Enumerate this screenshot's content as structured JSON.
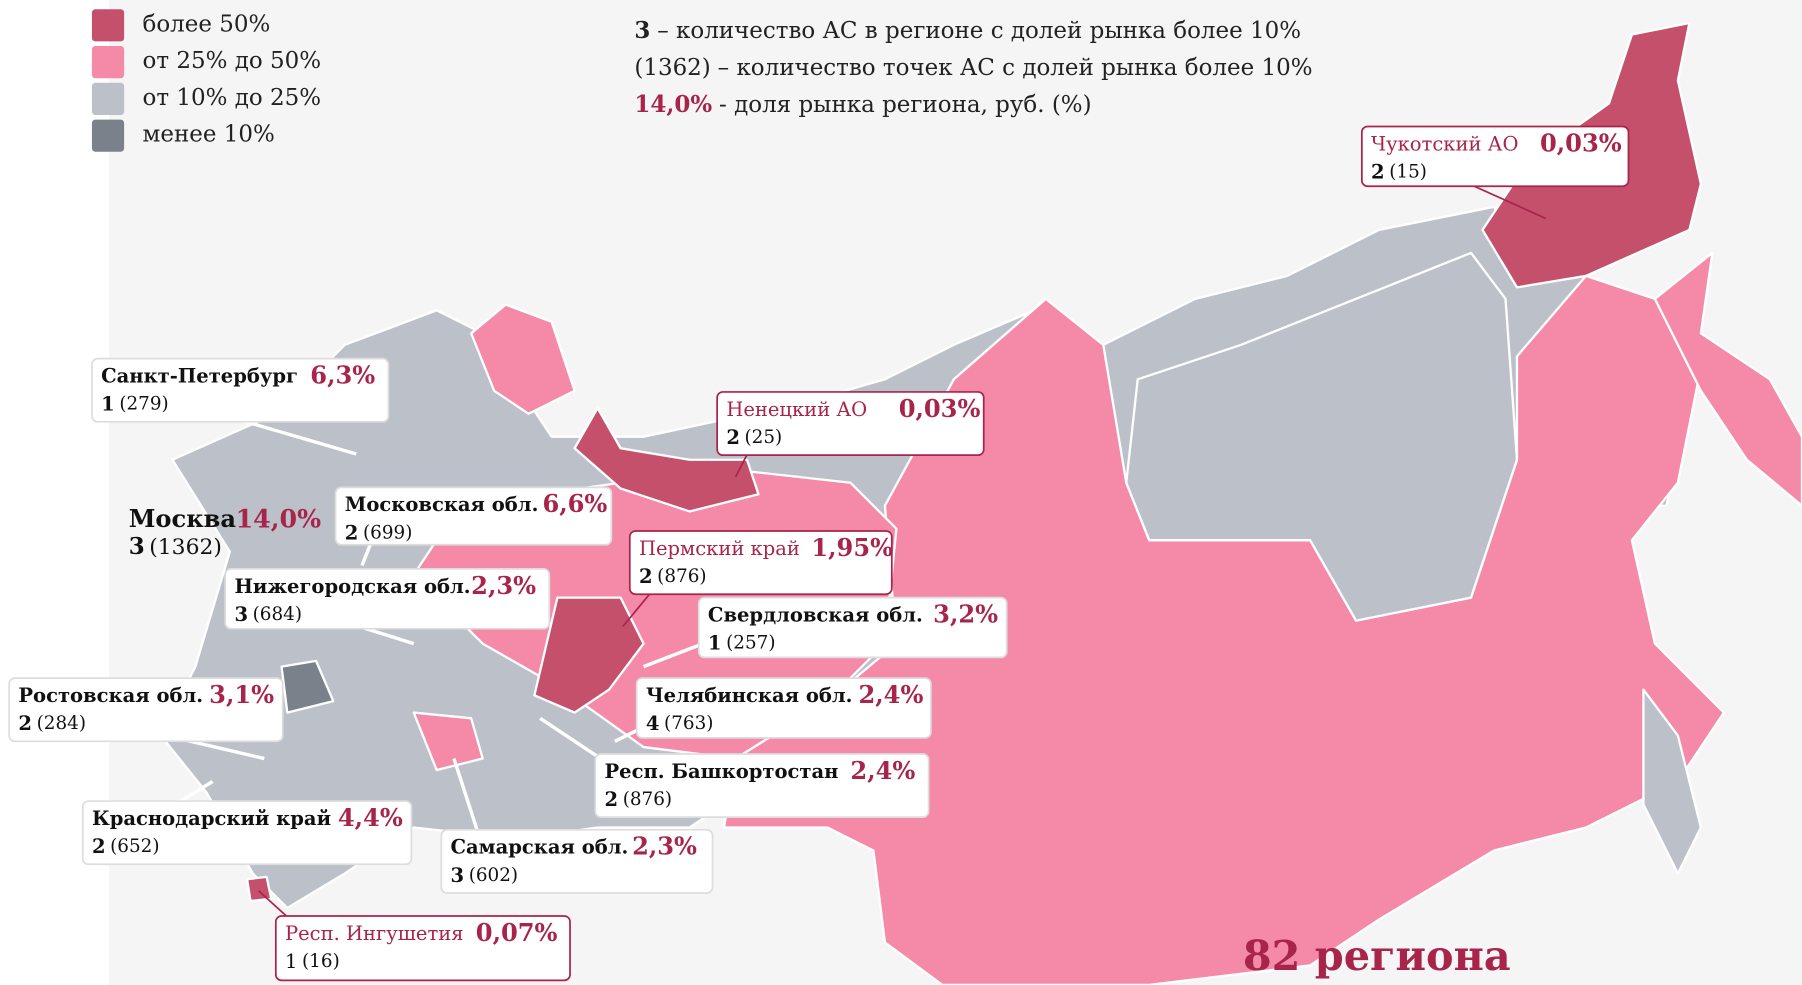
{
  "legend": [
    {
      "label": "более 50%",
      "color": "#c4506c"
    },
    {
      "label": "от 25% до 50%",
      "color": "#f58aa8"
    },
    {
      "label": "от 10% до 25%",
      "color": "#bcc1c9"
    },
    {
      "label": "менее 10%",
      "color": "#7b818a"
    }
  ],
  "key": [
    {
      "mark": "3",
      "text": "– количество АС в регионе с долей рынка более 10%"
    },
    {
      "mark": "(1362)",
      "text": "– количество точек АС с долей рынка более 10%"
    },
    {
      "mark": "14,0%",
      "text": "- доля рынка региона, руб. (%)"
    }
  ],
  "callouts": [
    {
      "name": "Чукотский АО",
      "share": "0,03%",
      "count": "2",
      "points": "(15)"
    },
    {
      "name": "Санкт-Петербург",
      "share": "6,3%",
      "count": "1",
      "points": "(279)"
    },
    {
      "name": "Ненецкий АО",
      "share": "0,03%",
      "count": "2",
      "points": "(25)"
    },
    {
      "name": "Москва",
      "share": "14,0%",
      "count": "3",
      "points": "(1362)"
    },
    {
      "name": "Московская обл.",
      "share": "6,6%",
      "count": "2",
      "points": "(699)"
    },
    {
      "name": "Пермский край",
      "share": "1,95%",
      "count": "2",
      "points": "(876)"
    },
    {
      "name": "Нижегородская обл.",
      "share": "2,3%",
      "count": "3",
      "points": "(684)"
    },
    {
      "name": "Свердловская обл.",
      "share": "3,2%",
      "count": "1",
      "points": "(257)"
    },
    {
      "name": "Ростовская обл.",
      "share": "3,1%",
      "count": "2",
      "points": "(284)"
    },
    {
      "name": "Челябинская обл.",
      "share": "2,4%",
      "count": "4",
      "points": "(763)"
    },
    {
      "name": "Респ. Башкортостан",
      "share": "2,4%",
      "count": "2",
      "points": "(876)"
    },
    {
      "name": "Краснодарский край",
      "share": "4,4%",
      "count": "2",
      "points": "(652)"
    },
    {
      "name": "Самарская обл.",
      "share": "2,3%",
      "count": "3",
      "points": "(602)"
    },
    {
      "name": "Респ. Ингушетия",
      "share": "0,07%",
      "count": "1",
      "points": "(16)"
    }
  ],
  "footer": "82 региона"
}
